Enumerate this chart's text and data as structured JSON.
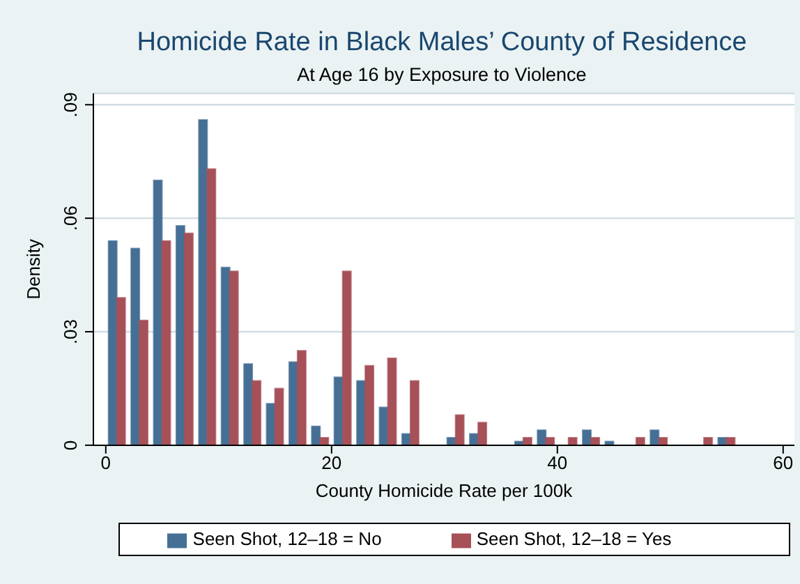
{
  "chart_data": {
    "type": "histogram",
    "title": "Homicide Rate in Black Males’ County of Residence",
    "subtitle": "At Age 16 by Exposure to Violence",
    "xlabel": "County Homicide Rate per 100k",
    "ylabel": "Density",
    "bins": [
      0,
      2,
      4,
      6,
      8,
      10,
      12,
      14,
      16,
      18,
      20,
      22,
      24,
      26,
      28,
      30,
      32,
      34,
      36,
      38,
      40,
      42,
      44,
      46,
      48,
      50,
      52,
      54,
      56
    ],
    "series": [
      {
        "name": "Seen Shot, 12–18 = No",
        "color": "#456f95",
        "values": [
          0.054,
          0.052,
          0.07,
          0.058,
          0.086,
          0.047,
          0.0215,
          0.011,
          0.022,
          0.005,
          0.018,
          0.017,
          0.01,
          0.003,
          0,
          0.002,
          0.003,
          0,
          0.001,
          0.004,
          0,
          0.004,
          0.001,
          0,
          0.004,
          0,
          0,
          0.002
        ]
      },
      {
        "name": "Seen Shot, 12–18 = Yes",
        "color": "#a65058",
        "values": [
          0.039,
          0.033,
          0.054,
          0.056,
          0.073,
          0.046,
          0.017,
          0.015,
          0.025,
          0.002,
          0.046,
          0.021,
          0.023,
          0.017,
          0,
          0.008,
          0.006,
          0,
          0.002,
          0.002,
          0.002,
          0.002,
          0,
          0.002,
          0.002,
          0,
          0.002,
          0.002
        ]
      }
    ],
    "xlim": [
      -1.1,
      61
    ],
    "xticks": [
      0,
      20,
      40,
      60
    ],
    "ylim": [
      0,
      0.093
    ],
    "yticks": [
      {
        "value": 0,
        "label": "0"
      },
      {
        "value": 0.03,
        "label": ".03"
      },
      {
        "value": 0.06,
        "label": ".06"
      },
      {
        "value": 0.09,
        "label": ".09"
      }
    ],
    "grid": "y",
    "legend": "bottom"
  }
}
